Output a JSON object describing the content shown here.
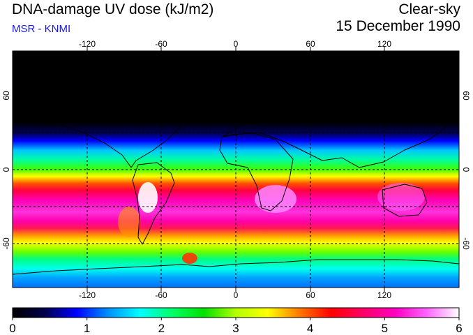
{
  "header": {
    "title": "DNA-damage UV dose (kJ/m2)",
    "subtitle": "MSR - KNMI",
    "condition": "Clear-sky",
    "date": "15 December 1990"
  },
  "map": {
    "lon_ticks": [
      "-120",
      "-60",
      "0",
      "60",
      "120"
    ],
    "lat_ticks_left": [
      "60",
      "0",
      "-60"
    ],
    "lat_ticks_right": [
      "60",
      "0",
      "-60"
    ]
  },
  "colorbar": {
    "labels": [
      "0",
      "1",
      "2",
      "3",
      "4",
      "5",
      "6"
    ],
    "min": 0,
    "max": 6,
    "colors": [
      "#000000",
      "#00004a",
      "#0000ff",
      "#0090ff",
      "#00ffff",
      "#00ff66",
      "#00e000",
      "#b4ff00",
      "#ffff00",
      "#ff7800",
      "#ff0000",
      "#ff0066",
      "#ff00c0",
      "#ff66ff",
      "#ffffff"
    ]
  }
}
